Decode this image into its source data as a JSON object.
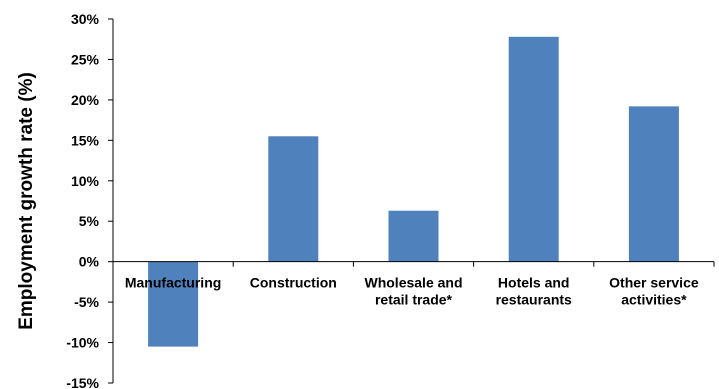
{
  "chart_data": {
    "type": "bar",
    "title": "",
    "xlabel": "",
    "ylabel": "Employment growth rate (%)",
    "categories": [
      [
        "Manufacturing"
      ],
      [
        "Construction"
      ],
      [
        "Wholesale and",
        "retail trade*"
      ],
      [
        "Hotels and",
        "restaurants"
      ],
      [
        "Other service",
        "activities*"
      ]
    ],
    "values": [
      -10.5,
      15.5,
      6.3,
      27.8,
      19.2
    ],
    "ylim": [
      -15,
      30
    ],
    "yticks": [
      "-15%",
      "-10%",
      "-5%",
      "0%",
      "5%",
      "10%",
      "15%",
      "20%",
      "25%",
      "30%"
    ],
    "grid": false,
    "legend": "none",
    "colors": {
      "bar": "#4F81BD",
      "axis": "#000000"
    }
  }
}
